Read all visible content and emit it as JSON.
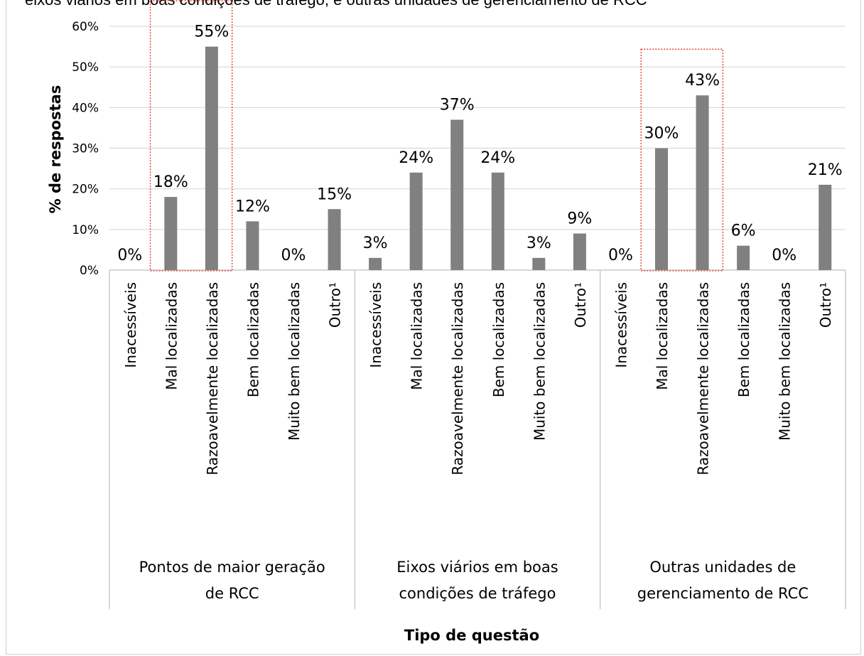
{
  "title": "eixos viários em boas condições de tráfego, e outras unidades de gerenciamento de RCC",
  "chart_data": {
    "type": "bar",
    "ylabel": "% de respostas",
    "xlabel": "Tipo de questão",
    "ylim": [
      0,
      60
    ],
    "yticks": [
      "0%",
      "10%",
      "20%",
      "30%",
      "40%",
      "50%",
      "60%"
    ],
    "grid": true,
    "legend": "none",
    "groups": [
      {
        "name": "Pontos de maior geração de RCC",
        "name_lines": [
          "Pontos de maior geração",
          "de RCC"
        ],
        "categories": [
          "Inacessíveis",
          "Mal localizadas",
          "Razoavelmente localizadas",
          "Bem localizadas",
          "Muito bem localizadas",
          "Outro¹"
        ],
        "values": [
          0,
          18,
          55,
          12,
          0,
          15
        ],
        "labels": [
          "0%",
          "18%",
          "55%",
          "12%",
          "0%",
          "15%"
        ]
      },
      {
        "name": "Eixos viários em boas condições de tráfego",
        "name_lines": [
          "Eixos viários em boas",
          "condições de tráfego"
        ],
        "categories": [
          "Inacessíveis",
          "Mal localizadas",
          "Razoavelmente localizadas",
          "Bem localizadas",
          "Muito bem localizadas",
          "Outro¹"
        ],
        "values": [
          3,
          24,
          37,
          24,
          3,
          9
        ],
        "labels": [
          "3%",
          "24%",
          "37%",
          "24%",
          "3%",
          "9%"
        ]
      },
      {
        "name": "Outras unidades de gerenciamento de RCC",
        "name_lines": [
          "Outras unidades de",
          "gerenciamento de RCC"
        ],
        "categories": [
          "Inacessíveis",
          "Mal localizadas",
          "Razoavelmente localizadas",
          "Bem localizadas",
          "Muito bem localizadas",
          "Outro¹"
        ],
        "values": [
          0,
          30,
          43,
          6,
          0,
          21
        ],
        "labels": [
          "0%",
          "30%",
          "43%",
          "6%",
          "0%",
          "21%"
        ]
      }
    ],
    "highlights": [
      {
        "group": 0,
        "from": 1,
        "to": 2
      },
      {
        "group": 2,
        "from": 1,
        "to": 2
      }
    ],
    "colors": {
      "bar": "#808080",
      "grid": "#d9d9d9",
      "highlight": "#e03030",
      "axis": "#bfbfbf"
    }
  }
}
